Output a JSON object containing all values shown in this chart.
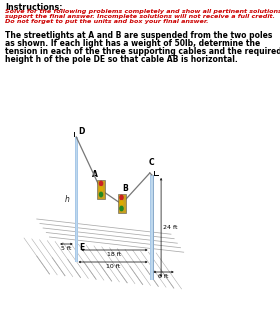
{
  "bg_color": "#ffffff",
  "title_instructions": "Instructions:",
  "line1_red": "Solve for the following problems completely and show all pertinent solutions that",
  "line2_red": "support the final answer. Incomplete solutions will not receive a full credit.",
  "line3_red": "Do not forget to put the units and box your final answer.",
  "problem_text": [
    "The streetlights at A and B are suspended from the two poles",
    "as shown. If each light has a weight of 50lb, determine the",
    "tension in each of the three supporting cables and the required",
    "height h of the pole DE so that cable AB is horizontal."
  ],
  "dims": {
    "5ft": "5 ft",
    "18ft": "18 ft",
    "10ft": "10 ft",
    "6ft": "6 ft",
    "24ft": "24 ft",
    "h": "h"
  },
  "labels": {
    "A": "A",
    "B": "B",
    "C": "C",
    "D": "D",
    "E": "E"
  },
  "pole_color_main": "#a8c8e8",
  "pole_color_light": "#c8dff0",
  "pole_color_dark": "#7090b0",
  "cable_color": "#777777",
  "floor_color": "#aaaaaa",
  "light_body": "#c8a020",
  "light_red": "#cc2222",
  "light_yellow": "#ddaa00",
  "light_green": "#228822",
  "dim_color": "#222222"
}
